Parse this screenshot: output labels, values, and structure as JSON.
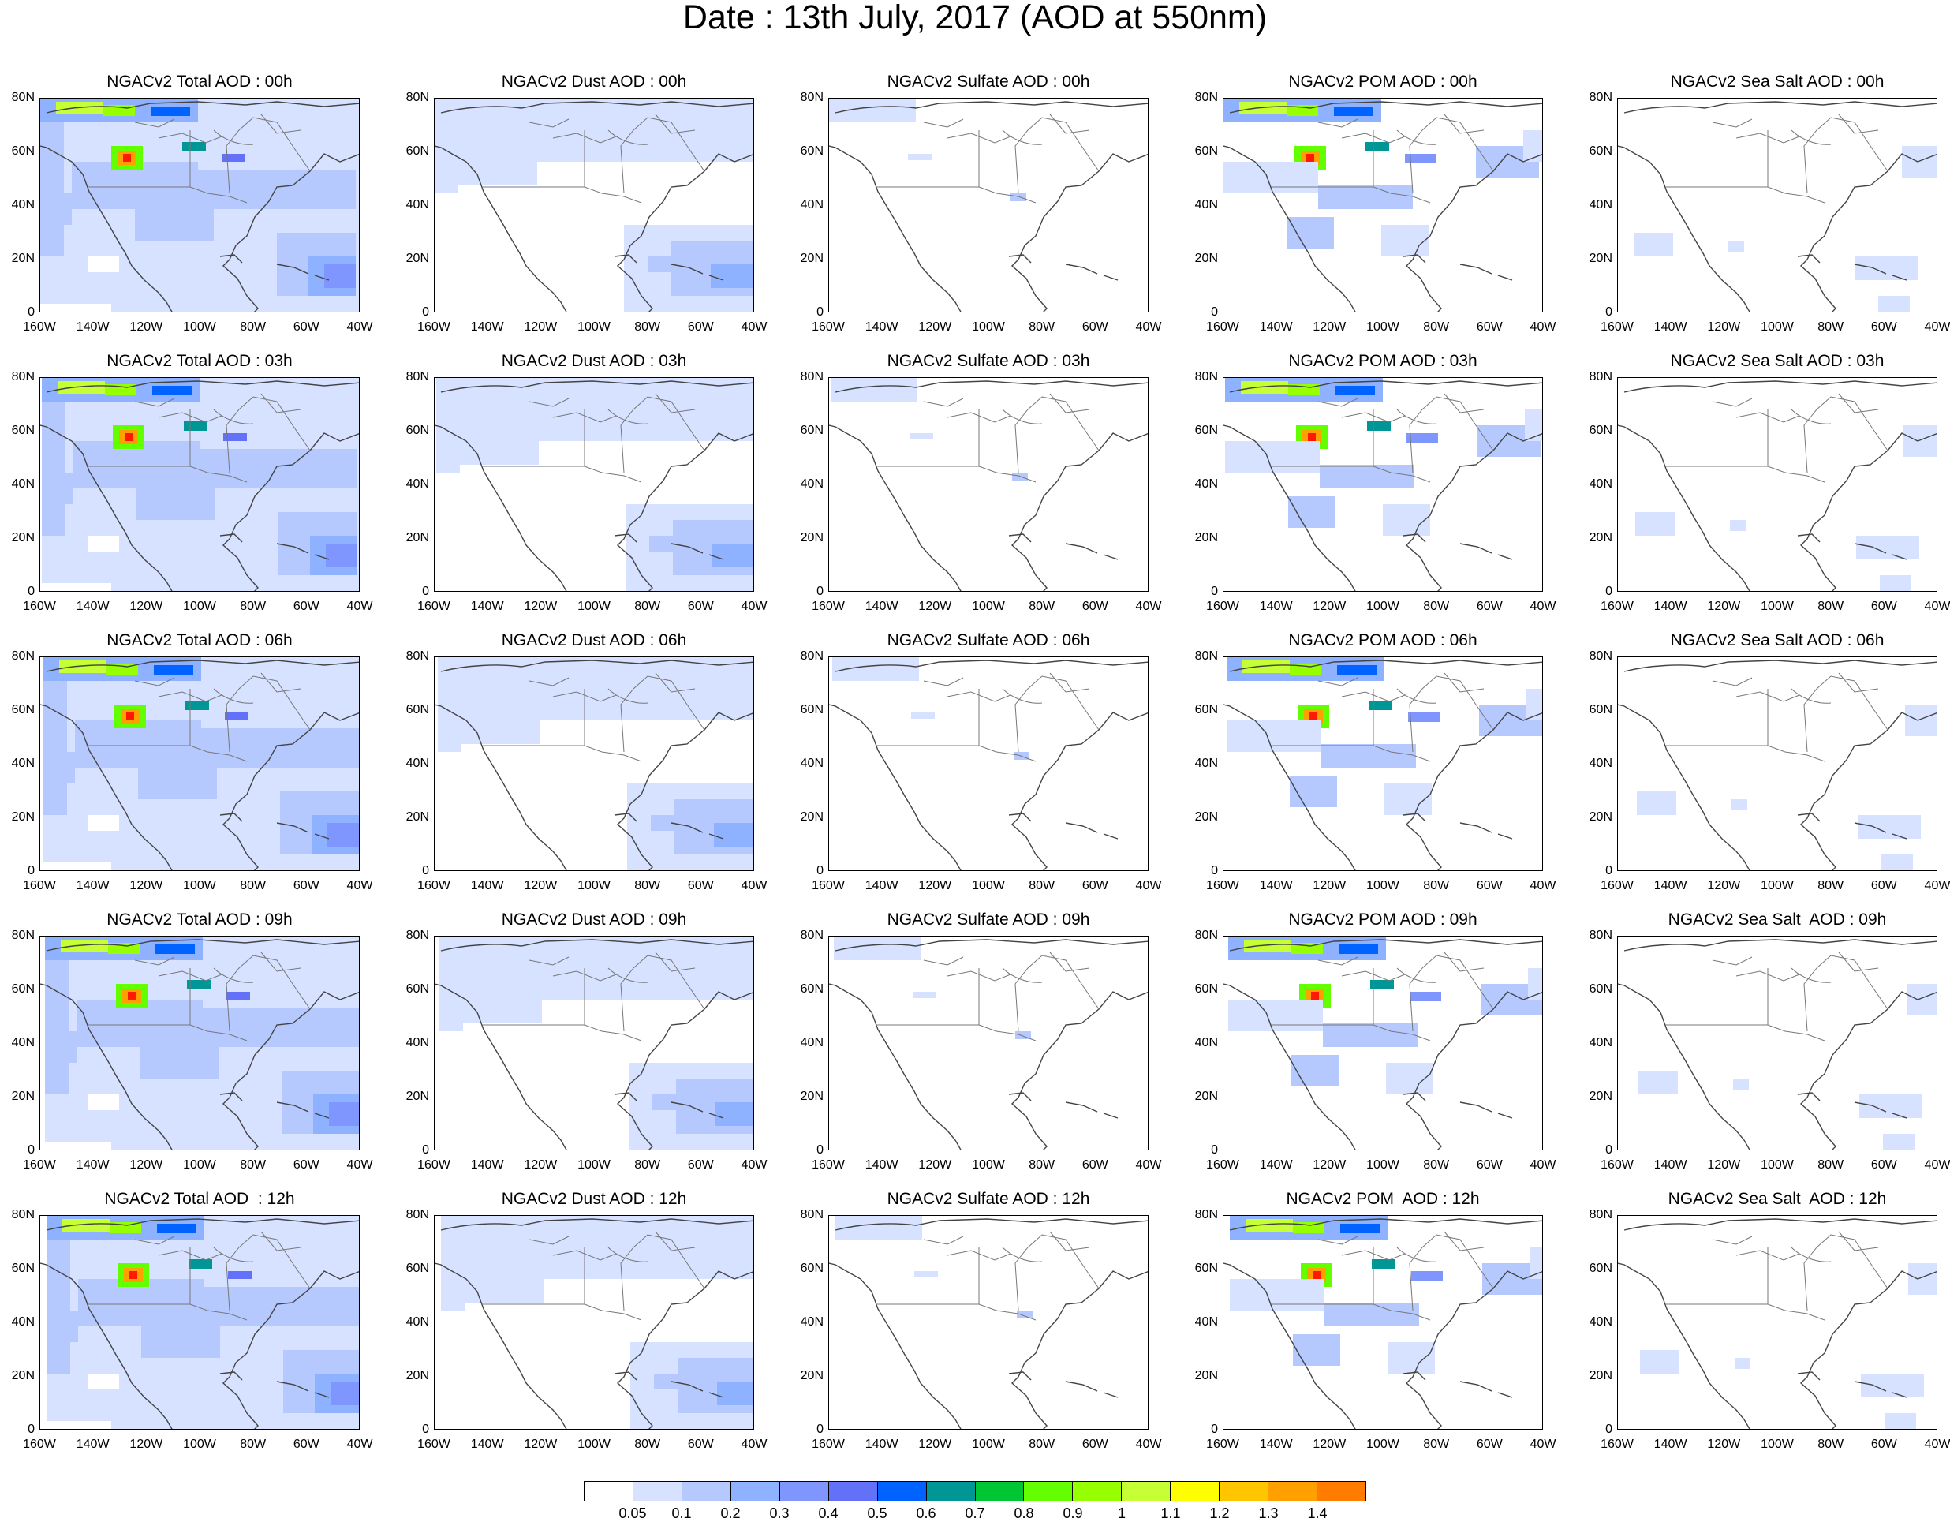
{
  "title": "Date : 13th July, 2017 (AOD at 550nm)",
  "lat_labels": [
    "80N",
    "60N",
    "40N",
    "20N",
    "0"
  ],
  "lon_labels": [
    "160W",
    "140W",
    "120W",
    "100W",
    "80W",
    "60W",
    "40W"
  ],
  "rows": [
    {
      "hour": "00h",
      "titles": [
        "NGACv2 Total AOD : 00h",
        "NGACv2 Dust AOD : 00h",
        "NGACv2 Sulfate AOD : 00h",
        "NGACv2 POM AOD : 00h",
        "NGACv2 Sea Salt AOD : 00h"
      ]
    },
    {
      "hour": "03h",
      "titles": [
        "NGACv2 Total AOD : 03h",
        "NGACv2 Dust AOD : 03h",
        "NGACv2 Sulfate AOD : 03h",
        "NGACv2 POM AOD : 03h",
        "NGACv2 Sea Salt AOD : 03h"
      ]
    },
    {
      "hour": "06h",
      "titles": [
        "NGACv2 Total AOD : 06h",
        "NGACv2 Dust AOD : 06h",
        "NGACv2 Sulfate AOD : 06h",
        "NGACv2 POM AOD : 06h",
        "NGACv2 Sea Salt AOD : 06h"
      ]
    },
    {
      "hour": "09h",
      "titles": [
        "NGACv2 Total AOD : 09h",
        "NGACv2 Dust AOD : 09h",
        "NGACv2 Sulfate AOD : 09h",
        "NGACv2 POM AOD : 09h",
        "NGACv2 Sea Salt  AOD : 09h"
      ]
    },
    {
      "hour": "12h",
      "titles": [
        "NGACv2 Total AOD  : 12h",
        "NGACv2 Dust AOD : 12h",
        "NGACv2 Sulfate AOD : 12h",
        "NGACv2 POM  AOD : 12h",
        "NGACv2 Sea Salt  AOD : 12h"
      ]
    }
  ],
  "species": [
    "Total",
    "Dust",
    "Sulfate",
    "POM",
    "Sea Salt"
  ],
  "colorbar": {
    "colors": [
      "#ffffff",
      "#d6e2ff",
      "#b5c9ff",
      "#8eb2ff",
      "#7f96ff",
      "#6370f8",
      "#0063ff",
      "#009696",
      "#00c633",
      "#63ff00",
      "#96ff00",
      "#c6ff33",
      "#ffff00",
      "#ffc600",
      "#ffa000",
      "#ff7c00",
      "#ff1900"
    ],
    "labels": [
      "0.05",
      "0.1",
      "0.2",
      "0.3",
      "0.4",
      "0.5",
      "0.6",
      "0.7",
      "0.8",
      "0.9",
      "1",
      "1.1",
      "1.2",
      "1.3",
      "1.4"
    ]
  }
}
